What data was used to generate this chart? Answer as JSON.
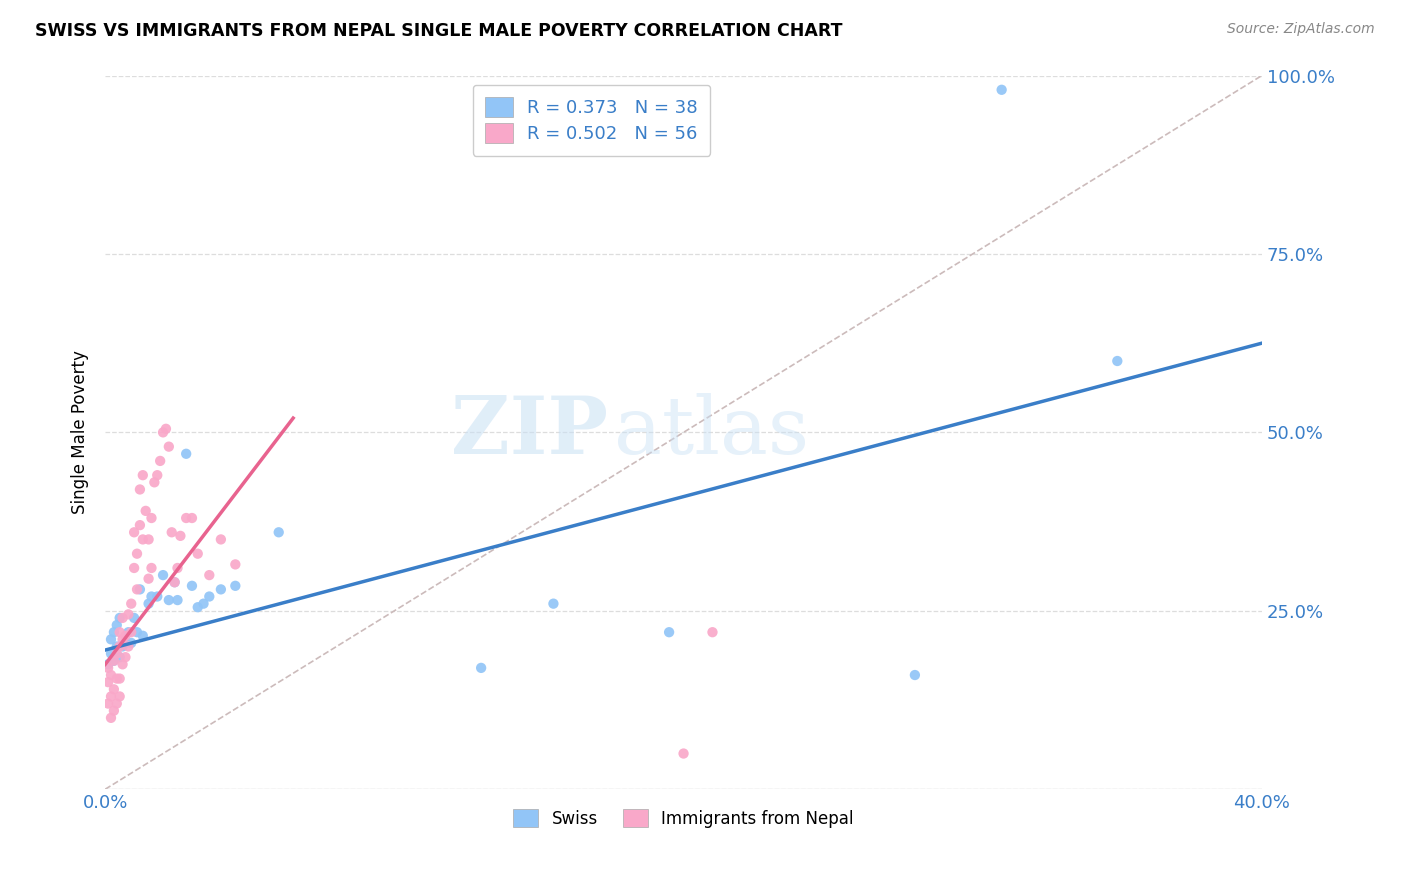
{
  "title": "SWISS VS IMMIGRANTS FROM NEPAL SINGLE MALE POVERTY CORRELATION CHART",
  "source": "Source: ZipAtlas.com",
  "ylabel_label": "Single Male Poverty",
  "x_min": 0.0,
  "x_max": 0.4,
  "y_min": 0.0,
  "y_max": 1.0,
  "x_ticks": [
    0.0,
    0.1,
    0.2,
    0.3,
    0.4
  ],
  "x_tick_labels": [
    "0.0%",
    "",
    "",
    "",
    "40.0%"
  ],
  "y_ticks": [
    0.0,
    0.25,
    0.5,
    0.75,
    1.0
  ],
  "y_tick_labels": [
    "",
    "25.0%",
    "50.0%",
    "75.0%",
    "100.0%"
  ],
  "swiss_color": "#92C5F7",
  "nepal_color": "#F9A8C9",
  "swiss_line_color": "#3A7EC8",
  "nepal_line_color": "#E8638F",
  "diag_line_color": "#CCBBBB",
  "R_swiss": 0.373,
  "N_swiss": 38,
  "R_nepal": 0.502,
  "N_nepal": 56,
  "legend_label_swiss": "Swiss",
  "legend_label_nepal": "Immigrants from Nepal",
  "watermark_zip": "ZIP",
  "watermark_atlas": "atlas",
  "swiss_line_x0": 0.0,
  "swiss_line_y0": 0.195,
  "swiss_line_x1": 0.4,
  "swiss_line_y1": 0.625,
  "nepal_line_x0": 0.0,
  "nepal_line_y0": 0.175,
  "nepal_line_x1": 0.065,
  "nepal_line_y1": 0.52,
  "swiss_x": [
    0.001,
    0.002,
    0.002,
    0.003,
    0.003,
    0.004,
    0.004,
    0.005,
    0.005,
    0.006,
    0.007,
    0.008,
    0.009,
    0.01,
    0.011,
    0.012,
    0.013,
    0.015,
    0.016,
    0.018,
    0.02,
    0.022,
    0.024,
    0.025,
    0.028,
    0.03,
    0.032,
    0.034,
    0.036,
    0.04,
    0.045,
    0.06,
    0.13,
    0.155,
    0.195,
    0.28,
    0.31,
    0.35
  ],
  "swiss_y": [
    0.175,
    0.19,
    0.21,
    0.18,
    0.22,
    0.2,
    0.23,
    0.185,
    0.24,
    0.2,
    0.205,
    0.22,
    0.205,
    0.24,
    0.22,
    0.28,
    0.215,
    0.26,
    0.27,
    0.27,
    0.3,
    0.265,
    0.29,
    0.265,
    0.47,
    0.285,
    0.255,
    0.26,
    0.27,
    0.28,
    0.285,
    0.36,
    0.17,
    0.26,
    0.22,
    0.16,
    0.98,
    0.6
  ],
  "nepal_x": [
    0.001,
    0.001,
    0.001,
    0.002,
    0.002,
    0.002,
    0.003,
    0.003,
    0.003,
    0.004,
    0.004,
    0.004,
    0.005,
    0.005,
    0.005,
    0.005,
    0.006,
    0.006,
    0.006,
    0.007,
    0.007,
    0.008,
    0.008,
    0.009,
    0.009,
    0.01,
    0.01,
    0.011,
    0.011,
    0.012,
    0.012,
    0.013,
    0.013,
    0.014,
    0.015,
    0.015,
    0.016,
    0.016,
    0.017,
    0.018,
    0.019,
    0.02,
    0.021,
    0.022,
    0.023,
    0.024,
    0.025,
    0.026,
    0.028,
    0.03,
    0.032,
    0.036,
    0.04,
    0.045,
    0.2,
    0.21
  ],
  "nepal_y": [
    0.12,
    0.15,
    0.17,
    0.1,
    0.13,
    0.16,
    0.11,
    0.14,
    0.18,
    0.12,
    0.155,
    0.19,
    0.13,
    0.155,
    0.2,
    0.22,
    0.175,
    0.21,
    0.24,
    0.185,
    0.215,
    0.2,
    0.245,
    0.22,
    0.26,
    0.31,
    0.36,
    0.28,
    0.33,
    0.37,
    0.42,
    0.35,
    0.44,
    0.39,
    0.295,
    0.35,
    0.31,
    0.38,
    0.43,
    0.44,
    0.46,
    0.5,
    0.505,
    0.48,
    0.36,
    0.29,
    0.31,
    0.355,
    0.38,
    0.38,
    0.33,
    0.3,
    0.35,
    0.315,
    0.05,
    0.22
  ]
}
